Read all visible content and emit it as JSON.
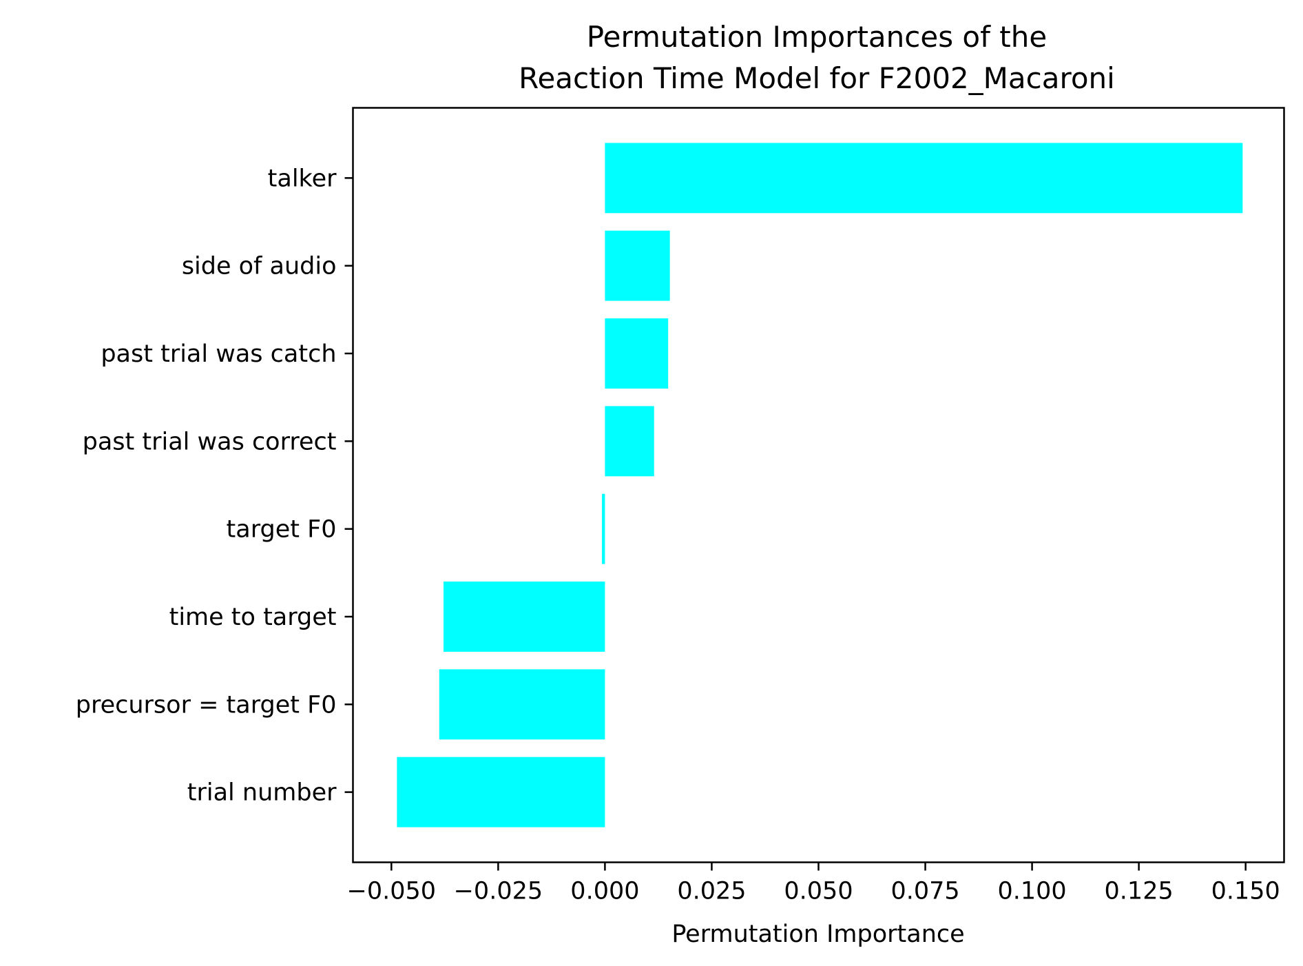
{
  "chart_data": {
    "type": "bar",
    "orientation": "horizontal",
    "title": "Permutation Importances of the\nReaction Time Model for F2002_Macaroni",
    "xlabel": "Permutation Importance",
    "ylabel": "",
    "bar_color": "#00ffff",
    "grid": false,
    "legend": "none",
    "xlim": [
      -0.059,
      0.159
    ],
    "xticks": [
      -0.05,
      -0.025,
      0.0,
      0.025,
      0.05,
      0.075,
      0.1,
      0.125,
      0.15
    ],
    "xtick_labels": [
      "−0.050",
      "−0.025",
      "0.000",
      "0.025",
      "0.050",
      "0.075",
      "0.100",
      "0.125",
      "0.150"
    ],
    "categories": [
      "talker",
      "side of audio",
      "past trial was catch",
      "past trial was correct",
      "target F0",
      "time to target",
      "precursor = target F0",
      "trial number"
    ],
    "values": [
      0.1493,
      0.0152,
      0.0148,
      0.0115,
      -0.0007,
      -0.0378,
      -0.0388,
      -0.0487
    ]
  }
}
